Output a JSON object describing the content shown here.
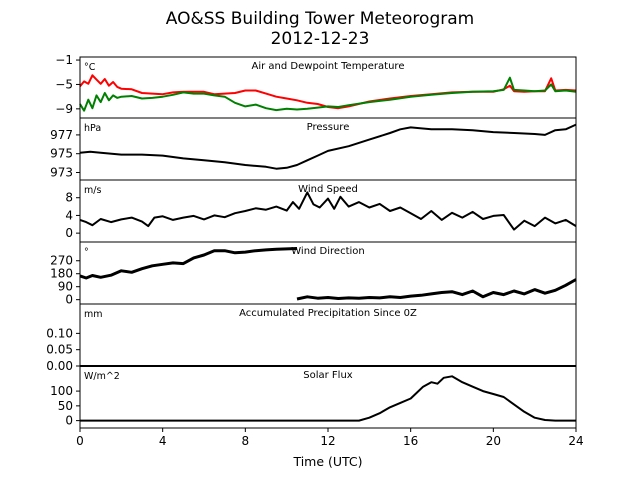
{
  "chart_data": {
    "type": "line",
    "title": "AO&SS Building Tower Meteorogram",
    "subtitle": "2012-12-23",
    "xlabel": "Time (UTC)",
    "xlim": [
      0,
      24
    ],
    "xticks": [
      0,
      4,
      8,
      12,
      16,
      20,
      24
    ],
    "panels": [
      {
        "title": "Air and Dewpoint Temperature",
        "unit": "°C",
        "ylim": [
          -10.5,
          -0.5
        ],
        "yticks": [
          -1,
          -5,
          -9
        ],
        "series": [
          {
            "color": "#ff0000",
            "x": [
              0,
              0.2,
              0.4,
              0.6,
              0.8,
              1.0,
              1.2,
              1.4,
              1.6,
              1.8,
              2.0,
              2.5,
              3,
              3.5,
              4,
              4.5,
              5,
              5.5,
              6,
              6.5,
              7,
              7.5,
              8,
              8.5,
              9,
              9.5,
              10,
              10.5,
              11,
              11.5,
              12,
              12.5,
              13,
              14,
              15,
              16,
              17,
              18,
              19,
              20,
              20.5,
              20.8,
              21,
              21.5,
              22,
              22.5,
              22.8,
              23,
              23.5,
              24
            ],
            "values": [
              -5.3,
              -4.5,
              -4.9,
              -3.5,
              -4.2,
              -4.9,
              -4.1,
              -5.2,
              -4.6,
              -5.4,
              -5.7,
              -5.8,
              -6.4,
              -6.5,
              -6.6,
              -6.3,
              -6.2,
              -6.2,
              -6.2,
              -6.6,
              -6.5,
              -6.4,
              -6.0,
              -6.0,
              -6.5,
              -7.0,
              -7.3,
              -7.6,
              -8.0,
              -8.2,
              -8.7,
              -8.9,
              -8.6,
              -7.8,
              -7.3,
              -6.9,
              -6.6,
              -6.3,
              -6.2,
              -6.2,
              -5.8,
              -5.2,
              -6.1,
              -6.2,
              -6.1,
              -6.1,
              -4.0,
              -6.0,
              -5.9,
              -6.0
            ]
          },
          {
            "color": "#008000",
            "x": [
              0,
              0.2,
              0.4,
              0.6,
              0.8,
              1.0,
              1.2,
              1.4,
              1.6,
              1.8,
              2.0,
              2.5,
              3,
              3.5,
              4,
              4.5,
              5,
              5.5,
              6,
              6.5,
              7,
              7.5,
              8,
              8.5,
              9,
              9.5,
              10,
              10.5,
              11,
              11.5,
              12,
              12.5,
              13,
              14,
              15,
              16,
              17,
              18,
              19,
              20,
              20.5,
              20.8,
              21,
              21.5,
              22,
              22.5,
              22.8,
              23,
              23.5,
              24
            ],
            "values": [
              -8.2,
              -9.3,
              -7.5,
              -8.9,
              -6.8,
              -7.9,
              -6.4,
              -7.6,
              -6.8,
              -7.2,
              -7.0,
              -6.9,
              -7.3,
              -7.2,
              -7.0,
              -6.7,
              -6.3,
              -6.5,
              -6.5,
              -6.8,
              -7.0,
              -8.0,
              -8.6,
              -8.3,
              -8.9,
              -9.2,
              -9.0,
              -9.1,
              -9.0,
              -8.8,
              -8.6,
              -8.7,
              -8.4,
              -7.9,
              -7.5,
              -7.0,
              -6.7,
              -6.4,
              -6.2,
              -6.1,
              -5.9,
              -3.9,
              -5.9,
              -6.0,
              -6.1,
              -6.0,
              -5.0,
              -6.1,
              -6.0,
              -6.2
            ]
          }
        ]
      },
      {
        "title": "Pressure",
        "unit": "hPa",
        "ylim": [
          972.2,
          978.8
        ],
        "yticks": [
          977,
          975,
          973
        ],
        "series": [
          {
            "color": "#000000",
            "x": [
              0,
              0.5,
              1,
              2,
              3,
              4,
              5,
              6,
              7,
              8,
              9,
              9.5,
              10,
              10.5,
              11,
              11.5,
              12,
              13,
              14,
              15,
              15.5,
              16,
              17,
              18,
              19,
              20,
              21,
              22,
              22.5,
              23,
              23.5,
              24
            ],
            "values": [
              975.1,
              975.2,
              975.1,
              974.9,
              974.9,
              974.8,
              974.5,
              974.3,
              974.1,
              973.8,
              973.6,
              973.4,
              973.5,
              973.8,
              974.3,
              974.8,
              975.3,
              975.8,
              976.5,
              977.2,
              977.6,
              977.8,
              977.6,
              977.6,
              977.5,
              977.3,
              977.2,
              977.1,
              977.0,
              977.5,
              977.6,
              978.1
            ]
          }
        ]
      },
      {
        "title": "Wind Speed",
        "unit": "m/s",
        "ylim": [
          -2,
          12
        ],
        "yticks": [
          8,
          4,
          0
        ],
        "series": [
          {
            "color": "#000000",
            "x": [
              0,
              0.3,
              0.6,
              1,
              1.5,
              2,
              2.5,
              3,
              3.3,
              3.6,
              4,
              4.5,
              5,
              5.5,
              6,
              6.5,
              7,
              7.5,
              8,
              8.5,
              9,
              9.5,
              10,
              10.3,
              10.6,
              11,
              11.3,
              11.6,
              12,
              12.3,
              12.6,
              13,
              13.5,
              14,
              14.5,
              15,
              15.5,
              16,
              16.5,
              17,
              17.5,
              18,
              18.5,
              19,
              19.5,
              20,
              20.5,
              21,
              21.5,
              22,
              22.5,
              23,
              23.5,
              24
            ],
            "values": [
              3.0,
              2.5,
              1.8,
              3.2,
              2.5,
              3.1,
              3.5,
              2.6,
              1.6,
              3.5,
              3.8,
              3.0,
              3.5,
              3.9,
              3.1,
              4.0,
              3.6,
              4.5,
              5.0,
              5.6,
              5.3,
              6.0,
              5.1,
              7.0,
              5.5,
              9.2,
              6.5,
              5.8,
              7.8,
              5.5,
              8.2,
              6.0,
              7.0,
              5.8,
              6.6,
              5.0,
              5.8,
              4.5,
              3.2,
              5.0,
              3.0,
              4.6,
              3.5,
              4.8,
              3.2,
              3.9,
              4.1,
              0.8,
              2.8,
              1.6,
              3.5,
              2.2,
              3.0,
              1.6
            ]
          }
        ]
      },
      {
        "title": "Wind Direction",
        "unit": "°",
        "ylim": [
          -30,
          400
        ],
        "yticks": [
          270,
          180,
          90,
          0
        ],
        "series": [
          {
            "color": "#000000",
            "x": [
              0,
              0.3,
              0.6,
              1,
              1.5,
              2,
              2.5,
              3,
              3.5,
              4,
              4.5,
              5,
              5.5,
              6,
              6.5,
              7,
              7.5,
              8,
              8.5,
              9,
              9.5,
              10,
              10.5
            ],
            "values": [
              165,
              150,
              168,
              155,
              170,
              200,
              190,
              215,
              235,
              245,
              255,
              250,
              290,
              310,
              340,
              340,
              325,
              330,
              340,
              345,
              350,
              352,
              355
            ]
          },
          {
            "color": "#000000",
            "x": [
              10.5,
              11,
              11.5,
              12,
              12.5,
              13,
              13.5,
              14,
              14.5,
              15,
              15.5,
              16,
              16.5,
              17,
              17.5,
              18,
              18.5,
              19,
              19.5,
              20,
              20.5,
              21,
              21.5,
              22,
              22.5,
              23,
              23.5,
              24
            ],
            "values": [
              5,
              20,
              10,
              15,
              8,
              12,
              10,
              15,
              12,
              20,
              15,
              25,
              30,
              40,
              50,
              55,
              35,
              60,
              20,
              50,
              35,
              60,
              40,
              70,
              45,
              65,
              100,
              140
            ]
          }
        ]
      },
      {
        "title": "Accumulated Precipitation Since 0Z",
        "unit": "mm",
        "ylim": [
          0,
          0.19
        ],
        "yticks": [
          0.1,
          0.05,
          0.0
        ],
        "yticklabels": [
          "0.10",
          "0.05",
          "0.00"
        ],
        "series": [
          {
            "color": "#000000",
            "x": [
              0,
              24
            ],
            "values": [
              0,
              0
            ]
          }
        ]
      },
      {
        "title": "Solar Flux",
        "unit": "W/m^2",
        "ylim": [
          -25,
          185
        ],
        "yticks": [
          100,
          50,
          0
        ],
        "series": [
          {
            "color": "#000000",
            "x": [
              0,
              13.5,
              14,
              14.5,
              15,
              15.5,
              16,
              16.3,
              16.6,
              17,
              17.3,
              17.6,
              18,
              18.5,
              19,
              19.5,
              20,
              20.5,
              21,
              21.5,
              22,
              22.5,
              23,
              24
            ],
            "values": [
              0,
              0,
              10,
              25,
              45,
              60,
              75,
              95,
              115,
              130,
              125,
              145,
              150,
              130,
              115,
              100,
              90,
              80,
              55,
              30,
              10,
              2,
              0,
              0
            ]
          }
        ]
      }
    ]
  }
}
